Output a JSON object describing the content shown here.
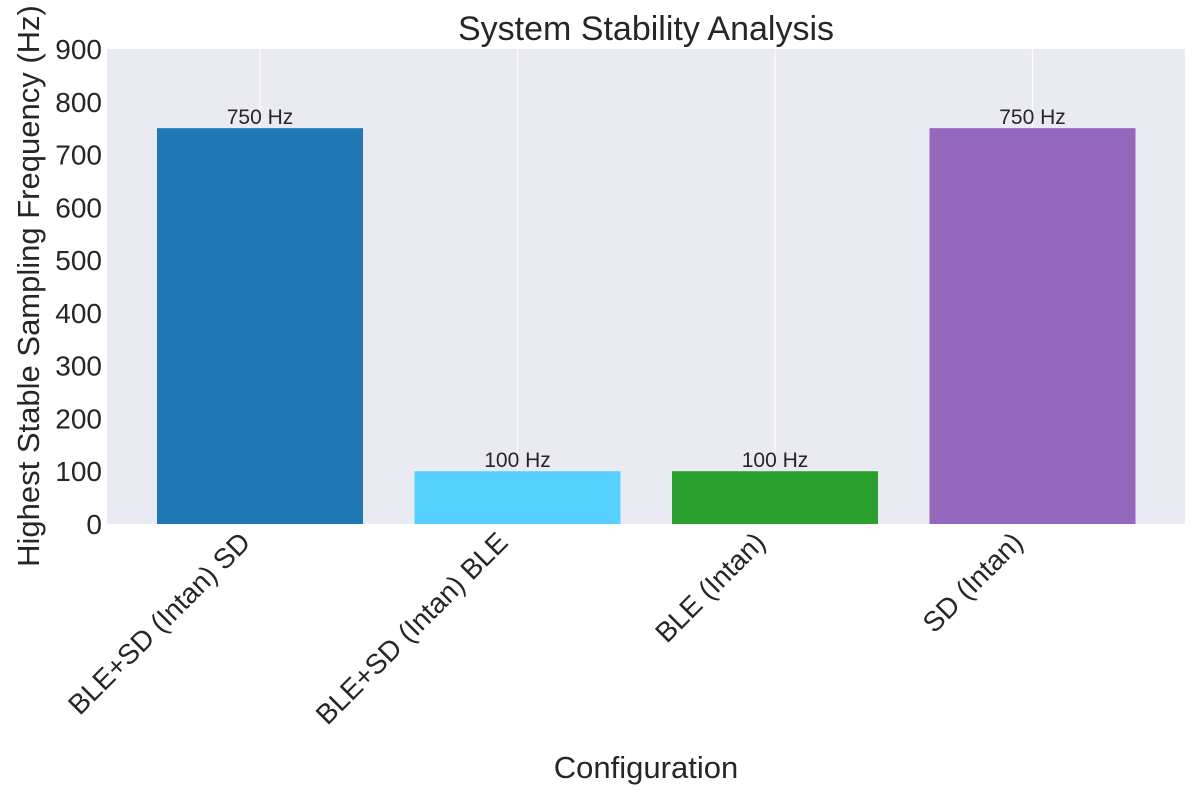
{
  "chart_data": {
    "type": "bar",
    "title": "System Stability Analysis",
    "xlabel": "Configuration",
    "ylabel": "Highest Stable Sampling Frequency (Hz)",
    "ylim": [
      0,
      900
    ],
    "yticks": [
      0,
      100,
      200,
      300,
      400,
      500,
      600,
      700,
      800,
      900
    ],
    "categories": [
      "BLE+SD (Intan) SD",
      "BLE+SD (Intan) BLE",
      "BLE (Intan)",
      "SD (Intan)"
    ],
    "values": [
      750,
      100,
      100,
      750
    ],
    "data_labels": [
      "750 Hz",
      "100 Hz",
      "100 Hz",
      "750 Hz"
    ],
    "colors": [
      "#1f77b4",
      "#56d1ff",
      "#2ca02c",
      "#9467bd"
    ],
    "grid": true,
    "background": "#eaeaf2"
  }
}
